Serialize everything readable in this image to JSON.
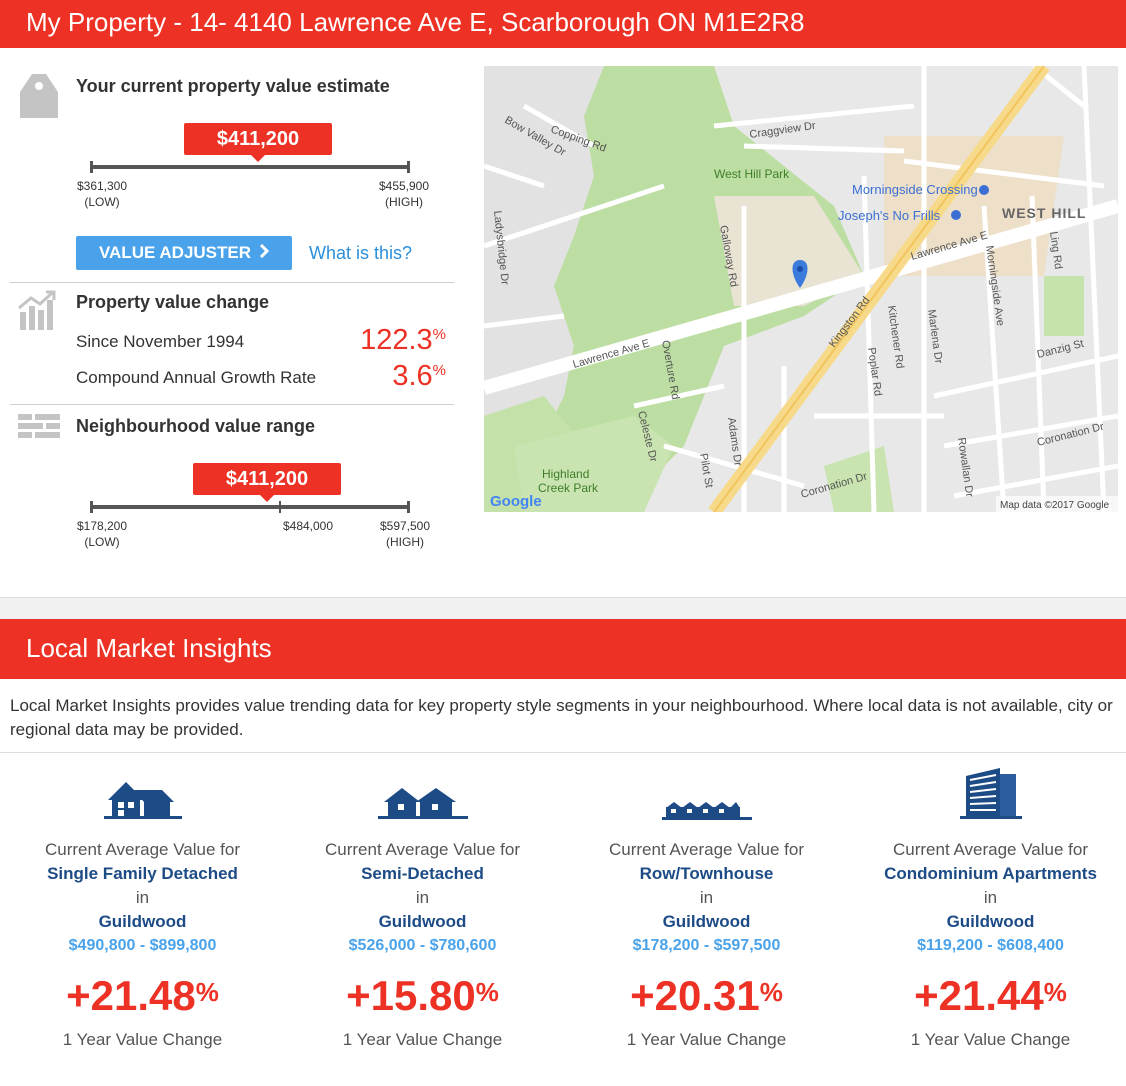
{
  "header": {
    "title": "My Property - 14- 4140 Lawrence Ave E, Scarborough ON M1E2R8"
  },
  "estimate": {
    "heading": "Your current property value estimate",
    "value": "$411,200",
    "low": "$361,300",
    "low_note": "(LOW)",
    "high": "$455,900",
    "high_note": "(HIGH)",
    "adjuster_label": "VALUE ADJUSTER",
    "what_is_this": "What is this?"
  },
  "value_change": {
    "heading": "Property value change",
    "since_label": "Since November 1994",
    "since_value": "122.3",
    "cagr_label": "Compound Annual Growth Rate",
    "cagr_value": "3.6",
    "percent_sign": "%"
  },
  "neighbourhood": {
    "heading": "Neighbourhood value range",
    "value": "$411,200",
    "low": "$178,200",
    "low_note": "(LOW)",
    "mid": "$484,000",
    "high": "$597,500",
    "high_note": "(HIGH)"
  },
  "map": {
    "labels": {
      "west_hill_park": "West Hill Park",
      "morningside_crossing": "Morningside Crossing",
      "josephs_no_frills": "Joseph's No Frills",
      "west_hill": "WEST HILL",
      "lawrence_ave_e": "Lawrence Ave E",
      "kingston_rd": "Kingston Rd",
      "highland_creek_park_1": "Highland",
      "highland_creek_park_2": "Creek Park",
      "galloway_rd": "Galloway Rd",
      "morningside_ave": "Morningside Ave",
      "overture_rd": "Overture Rd",
      "ladysbridge_dr": "Ladysbridge Dr",
      "craggview_dr": "Craggview Dr",
      "copping_rd": "Copping Rd",
      "bow_valley_dr": "Bow Valley Dr",
      "kitchener_rd": "Kitchener Rd",
      "poplar_rd": "Poplar Rd",
      "danzig_st": "Danzig St",
      "coronation_dr": "Coronation Dr",
      "ling_rd": "Ling Rd",
      "marlena_dr": "Marlena Dr",
      "adams_dr": "Adams Dr",
      "celeste_dr": "Celeste Dr",
      "pilot_st": "Pilot St",
      "rowallan_dr": "Rowallan Dr",
      "google": "Google",
      "attribution": "Map data ©2017 Google"
    }
  },
  "insights": {
    "title": "Local Market Insights",
    "intro": "Local Market Insights provides value trending data for key property style segments in your neighbourhood. Where local data is not available, city or regional data may be provided.",
    "columns": [
      {
        "icon": "single-family-house-icon",
        "label": "Current Average Value for",
        "type": "Single Family Detached",
        "in": "in",
        "neighbourhood": "Guildwood",
        "range": "$490,800 - $899,800",
        "change": "+21.48",
        "percent_sign": "%",
        "change_label": "1 Year Value Change"
      },
      {
        "icon": "semi-detached-house-icon",
        "label": "Current Average Value for",
        "type": "Semi-Detached",
        "in": "in",
        "neighbourhood": "Guildwood",
        "range": "$526,000 - $780,600",
        "change": "+15.80",
        "percent_sign": "%",
        "change_label": "1 Year Value Change"
      },
      {
        "icon": "row-townhouse-icon",
        "label": "Current Average Value for",
        "type": "Row/Townhouse",
        "in": "in",
        "neighbourhood": "Guildwood",
        "range": "$178,200 - $597,500",
        "change": "+20.31",
        "percent_sign": "%",
        "change_label": "1 Year Value Change"
      },
      {
        "icon": "condominium-building-icon",
        "label": "Current Average Value for",
        "type": "Condominium Apartments",
        "in": "in",
        "neighbourhood": "Guildwood",
        "range": "$119,200 - $608,400",
        "change": "+21.44",
        "percent_sign": "%",
        "change_label": "1 Year Value Change"
      }
    ]
  },
  "colors": {
    "brand_red": "#ed3124",
    "button_blue": "#4aa3ea",
    "navy": "#1d4b86"
  }
}
